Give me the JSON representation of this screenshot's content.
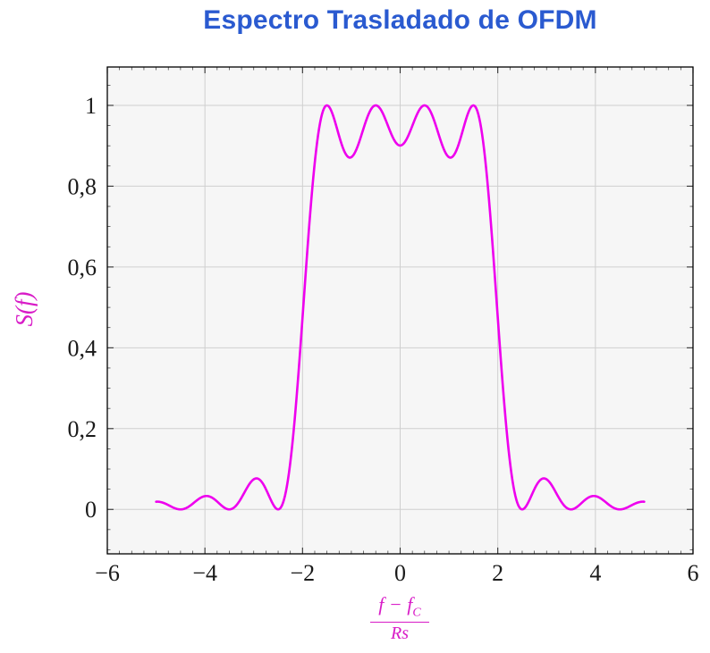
{
  "title": {
    "text": "Espectro Trasladado de OFDM",
    "color": "#2a5ad0"
  },
  "chart_data": {
    "type": "line",
    "title": "Espectro Trasladado de OFDM",
    "xlabel": "(f − f_C)/Rs",
    "ylabel": "S(f)",
    "xlim": [
      -6,
      6
    ],
    "ylim": [
      -0.11,
      1.095
    ],
    "grid": true,
    "legend": "none",
    "plot_background": "#f6f6f6",
    "grid_color": "#cfcfcf",
    "x_major_ticks": [
      -6,
      -4,
      -2,
      0,
      2,
      4,
      6
    ],
    "x_tick_labels": [
      "−6",
      "−4",
      "−2",
      "0",
      "2",
      "4",
      "6"
    ],
    "y_major_ticks": [
      0,
      0.2,
      0.4,
      0.6,
      0.8,
      1
    ],
    "y_tick_labels": [
      "0",
      "0,2",
      "0,4",
      "0,6",
      "0,8",
      "1"
    ],
    "x_minor_step": 0.25,
    "y_minor_step": 0.05,
    "series": [
      {
        "name": "S(f)",
        "color": "#ee00ee",
        "model": "S(f) = sum over subcarriers fk of sinc^2(f − fk)",
        "subcarriers": [
          -1.5,
          -0.5,
          0.5,
          1.5
        ],
        "x_range": [
          -5,
          5
        ],
        "sample_step": 0.25,
        "samples_x": [
          -5,
          -4.75,
          -4.5,
          -4.25,
          -4,
          -3.75,
          -3.5,
          -3.25,
          -3,
          -2.75,
          -2.5,
          -2.25,
          -2,
          -1.75,
          -1.5,
          -1.25,
          -1,
          -0.75,
          -0.5,
          -0.25,
          0,
          0.25,
          0.5,
          0.75,
          1,
          1.25,
          1.5,
          1.75,
          2,
          2.25,
          2.5,
          2.75,
          3,
          3.25,
          3.5,
          3.75,
          4,
          4.25,
          4.5,
          4.75,
          5
        ],
        "samples_y": [
          0.019,
          0.011,
          0,
          0.014,
          0.033,
          0.019,
          0,
          0.029,
          0.075,
          0.05,
          0,
          0.117,
          0.475,
          0.858,
          1,
          0.924,
          0.872,
          0.943,
          1,
          0.95,
          0.901,
          0.95,
          1,
          0.943,
          0.872,
          0.924,
          1,
          0.858,
          0.475,
          0.117,
          0,
          0.05,
          0.075,
          0.029,
          0,
          0.019,
          0.033,
          0.014,
          0,
          0.011,
          0.019
        ]
      }
    ]
  },
  "labels": {
    "ylabel": "S(f)",
    "x_numerator": "f − f",
    "x_numerator_sub": "C",
    "x_denominator": "Rs",
    "color": "#d81bc7"
  }
}
